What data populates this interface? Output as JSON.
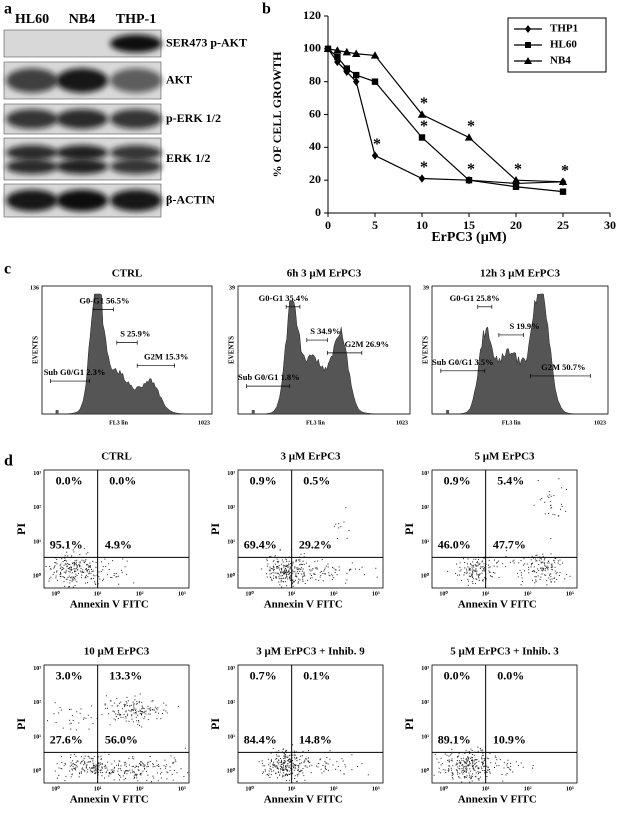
{
  "panel_labels": [
    "a",
    "b",
    "c",
    "d"
  ],
  "western_blot": {
    "lanes": [
      "HL60",
      "NB4",
      "THP-1"
    ],
    "blots": [
      "SER473 p-AKT",
      "AKT",
      "p-ERK 1/2",
      "ERK 1/2",
      "β-ACTIN"
    ]
  },
  "chart_data": {
    "type": "line",
    "x": [
      0,
      1,
      2,
      3,
      5,
      10,
      15,
      20,
      25
    ],
    "xlim": [
      0,
      30
    ],
    "xticks": [
      0,
      5,
      10,
      15,
      20,
      25,
      30
    ],
    "ylim": [
      0,
      120
    ],
    "yticks": [
      0,
      20,
      40,
      60,
      80,
      100,
      120
    ],
    "xlabel": "ErPC3 (µM)",
    "ylabel": "% OF CELL GROWTH",
    "grid": false,
    "legend": "upper right",
    "series": [
      {
        "name": "THP1",
        "color": "#000000",
        "marker": "diamond",
        "values": [
          100,
          92,
          86,
          80,
          35,
          21,
          20,
          18,
          19
        ]
      },
      {
        "name": "HL60",
        "color": "#000000",
        "marker": "square",
        "values": [
          100,
          95,
          88,
          84,
          80,
          46,
          20,
          16,
          13
        ]
      },
      {
        "name": "NB4",
        "color": "#000000",
        "marker": "triangle",
        "values": [
          100,
          99,
          98,
          97,
          96,
          60,
          46,
          20,
          19
        ]
      }
    ],
    "annotations": [
      {
        "text": "*",
        "x": 5,
        "y": 35
      },
      {
        "text": "*",
        "x": 10,
        "y": 60
      },
      {
        "text": "*",
        "x": 10,
        "y": 46
      },
      {
        "text": "*",
        "x": 10,
        "y": 21
      },
      {
        "text": "*",
        "x": 15,
        "y": 46
      },
      {
        "text": "*",
        "x": 15,
        "y": 20
      },
      {
        "text": "*",
        "x": 20,
        "y": 20
      },
      {
        "text": "*",
        "x": 25,
        "y": 19
      }
    ]
  },
  "cell_cycle": {
    "ylabel": "EVENTS",
    "xlabel": "FL3 lin",
    "xmax": "1023",
    "plots": [
      {
        "title": "CTRL",
        "ymax": "136",
        "gates": [
          "G0-G1 56.5%",
          "S 25.9%",
          "G2M 15.3%",
          "Sub G0/G1 2.3%"
        ]
      },
      {
        "title": "6h 3 µM ErPC3",
        "ymax": "39",
        "gates": [
          "G0-G1 35.4%",
          "S 34.9%",
          "G2M 26.9%",
          "Sub G0/G1 1.8%"
        ]
      },
      {
        "title": "12h 3 µM ErPC3",
        "ymax": "39",
        "gates": [
          "G0-G1 25.8%",
          "S 19.9%",
          "G2M 50.7%",
          "Sub G0/G1 3.5%"
        ]
      }
    ]
  },
  "apoptosis": {
    "ylabel": "PI",
    "xlabel": "Annexin V FITC",
    "ticks": [
      "10⁰",
      "10¹",
      "10²",
      "10³"
    ],
    "plots": [
      {
        "title": "CTRL",
        "quadrants": [
          "0.0%",
          "0.0%",
          "95.1%",
          "4.9%"
        ]
      },
      {
        "title": "3 µM ErPC3",
        "quadrants": [
          "0.9%",
          "0.5%",
          "69.4%",
          "29.2%"
        ]
      },
      {
        "title": "5 µM ErPC3",
        "quadrants": [
          "0.9%",
          "5.4%",
          "46.0%",
          "47.7%"
        ]
      },
      {
        "title": "10 µM ErPC3",
        "quadrants": [
          "3.0%",
          "13.3%",
          "27.6%",
          "56.0%"
        ]
      },
      {
        "title": "3 µM ErPC3 + Inhib. 9",
        "quadrants": [
          "0.7%",
          "0.1%",
          "84.4%",
          "14.8%"
        ]
      },
      {
        "title": "5 µM ErPC3 + Inhib. 3",
        "quadrants": [
          "0.0%",
          "0.0%",
          "89.1%",
          "10.9%"
        ]
      }
    ]
  }
}
